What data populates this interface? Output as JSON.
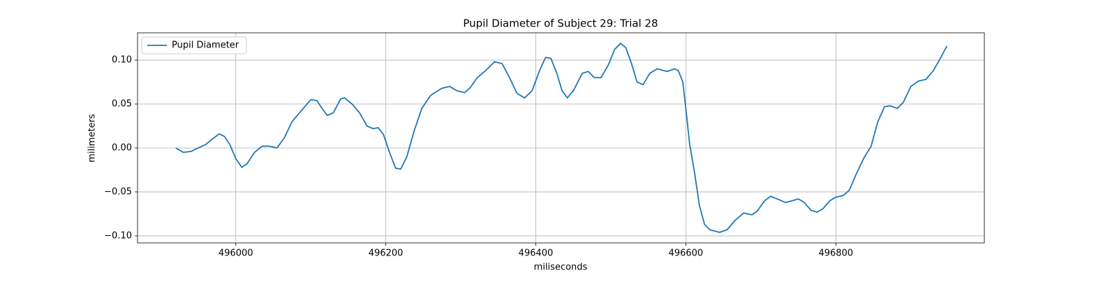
{
  "chart_data": {
    "type": "line",
    "title": "Pupil Diameter of Subject 29: Trial 28",
    "x_label": "miliseconds",
    "y_label": "milimeters",
    "xlim": [
      495869,
      496998
    ],
    "ylim": [
      -0.108,
      0.131
    ],
    "xticks": [
      496000,
      496200,
      496400,
      496600,
      496800
    ],
    "yticks": [
      {
        "value": 0.1,
        "label": "0.10"
      },
      {
        "value": 0.05,
        "label": "0.05"
      },
      {
        "value": 0,
        "label": "0.00"
      },
      {
        "value": -0.05,
        "label": "−0.05"
      },
      {
        "value": -0.1,
        "label": "−0.10"
      }
    ],
    "grid": true,
    "legend": "upper left",
    "x": [
      495920,
      495930,
      495940,
      495950,
      495960,
      495970,
      495978,
      495985,
      495992,
      496000,
      496008,
      496015,
      496025,
      496035,
      496045,
      496055,
      496065,
      496075,
      496090,
      496100,
      496108,
      496115,
      496122,
      496130,
      496140,
      496145,
      496155,
      496165,
      496175,
      496183,
      496190,
      496197,
      496205,
      496213,
      496220,
      496228,
      496238,
      496248,
      496260,
      496275,
      496285,
      496295,
      496305,
      496312,
      496322,
      496333,
      496345,
      496355,
      496365,
      496375,
      496385,
      496395,
      496405,
      496413,
      496420,
      496428,
      496435,
      496442,
      496450,
      496462,
      496470,
      496478,
      496487,
      496497,
      496505,
      496513,
      496520,
      496528,
      496535,
      496543,
      496552,
      496562,
      496575,
      496585,
      496590,
      496596,
      496600,
      496605,
      496612,
      496618,
      496625,
      496632,
      496645,
      496655,
      496665,
      496677,
      496688,
      496695,
      496705,
      496713,
      496722,
      496733,
      496742,
      496750,
      496758,
      496767,
      496775,
      496783,
      496792,
      496800,
      496810,
      496818,
      496827,
      496837,
      496847,
      496856,
      496865,
      496872,
      496882,
      496890,
      496900,
      496910,
      496920,
      496930,
      496940,
      496948
    ],
    "series": [
      {
        "name": "Pupil Diameter",
        "color": "#1f77b4",
        "values": [
          0.0,
          -0.005,
          -0.004,
          0.0,
          0.004,
          0.011,
          0.016,
          0.013,
          0.004,
          -0.012,
          -0.022,
          -0.018,
          -0.005,
          0.002,
          0.002,
          0.0,
          0.012,
          0.03,
          0.045,
          0.055,
          0.054,
          0.045,
          0.037,
          0.04,
          0.056,
          0.057,
          0.05,
          0.04,
          0.025,
          0.022,
          0.023,
          0.015,
          -0.005,
          -0.023,
          -0.024,
          -0.01,
          0.02,
          0.045,
          0.06,
          0.068,
          0.07,
          0.065,
          0.063,
          0.068,
          0.08,
          0.088,
          0.098,
          0.096,
          0.08,
          0.062,
          0.057,
          0.065,
          0.088,
          0.103,
          0.102,
          0.085,
          0.065,
          0.057,
          0.065,
          0.085,
          0.087,
          0.08,
          0.08,
          0.095,
          0.112,
          0.119,
          0.114,
          0.095,
          0.075,
          0.072,
          0.085,
          0.09,
          0.087,
          0.09,
          0.088,
          0.075,
          0.045,
          0.005,
          -0.03,
          -0.065,
          -0.087,
          -0.093,
          -0.096,
          -0.093,
          -0.083,
          -0.074,
          -0.076,
          -0.072,
          -0.06,
          -0.055,
          -0.058,
          -0.062,
          -0.06,
          -0.058,
          -0.062,
          -0.071,
          -0.073,
          -0.069,
          -0.06,
          -0.056,
          -0.054,
          -0.048,
          -0.03,
          -0.012,
          0.002,
          0.03,
          0.047,
          0.048,
          0.045,
          0.052,
          0.07,
          0.076,
          0.078,
          0.088,
          0.103,
          0.116
        ]
      }
    ]
  }
}
